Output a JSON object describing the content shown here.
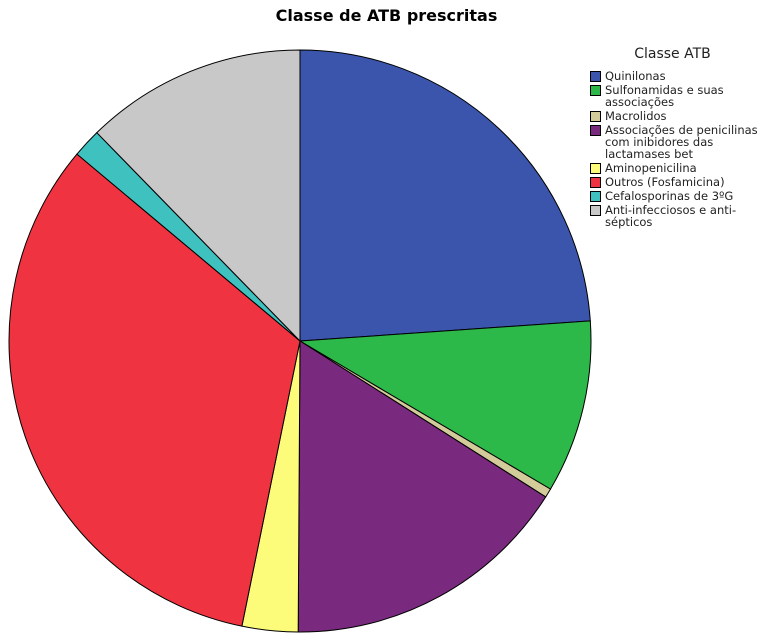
{
  "chart_data": {
    "type": "pie",
    "title": "Classe de ATB prescritas",
    "legend_title": "Classe ATB",
    "categories": [
      "Quinilonas",
      "Sulfonamidas e suas associações",
      "Macrolidos",
      "Associações de penicilinas com inibidores das lactamases bet",
      "Aminopenicilina",
      "Outros (Fosfamicina)",
      "Cefalosporinas de 3ºG",
      "Anti-infecciosos e anti-sépticos"
    ],
    "values": [
      23.9,
      9.6,
      0.5,
      16.1,
      3.1,
      32.9,
      1.6,
      12.3
    ],
    "colors": [
      "#3c55ac",
      "#2db84a",
      "#d3cc9a",
      "#7a2a7e",
      "#fdfb7a",
      "#ef3340",
      "#3fc1c0",
      "#c8c8c8"
    ],
    "legend": "right"
  }
}
